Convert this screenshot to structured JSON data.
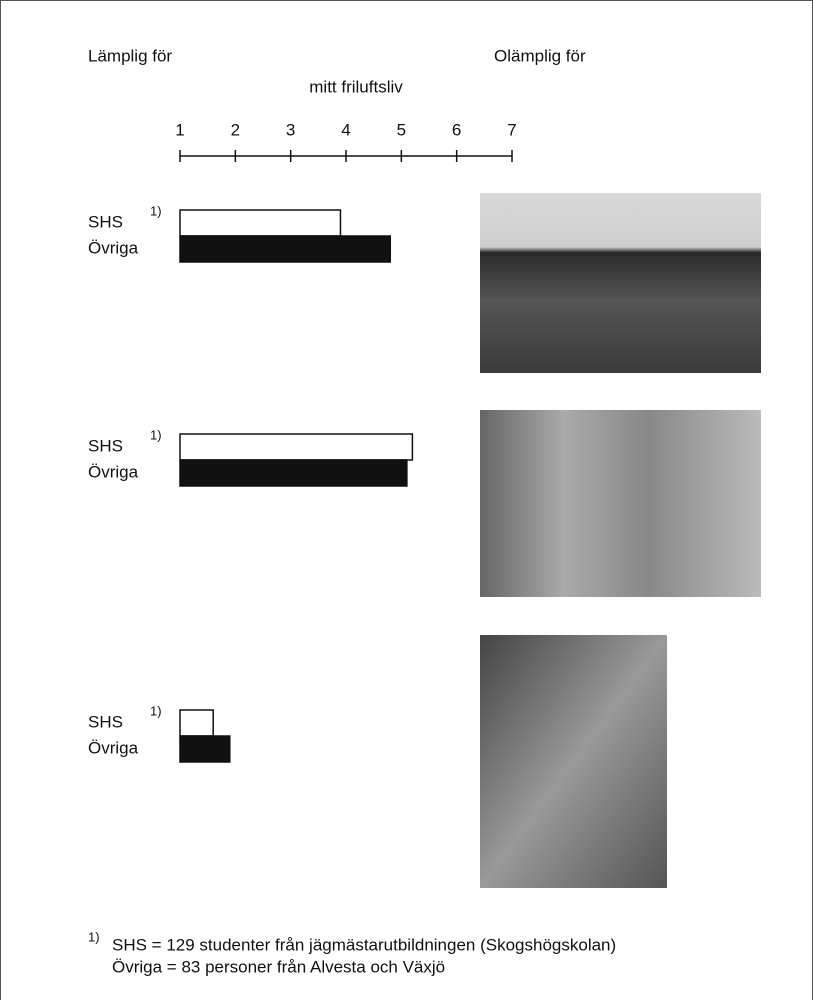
{
  "chart_data": {
    "type": "bar",
    "left_label": "Lämplig för",
    "right_label": "Olämplig för",
    "axis_title": "mitt friluftsliv",
    "xlim": [
      1,
      7
    ],
    "xticks": [
      1,
      2,
      3,
      4,
      5,
      6,
      7
    ],
    "series": [
      {
        "name": "SHS",
        "color": "#ffffff",
        "values": [
          3.9,
          5.2,
          1.6
        ]
      },
      {
        "name": "Övriga",
        "color": "#111111",
        "values": [
          4.8,
          5.1,
          1.9
        ]
      }
    ],
    "footnote": {
      "marker": "1)",
      "lines": [
        "SHS = 129 studenter från jägmästarutbildningen (Skogshögskolan)",
        "Övriga = 83 personer från Alvesta och Växjö"
      ]
    }
  }
}
